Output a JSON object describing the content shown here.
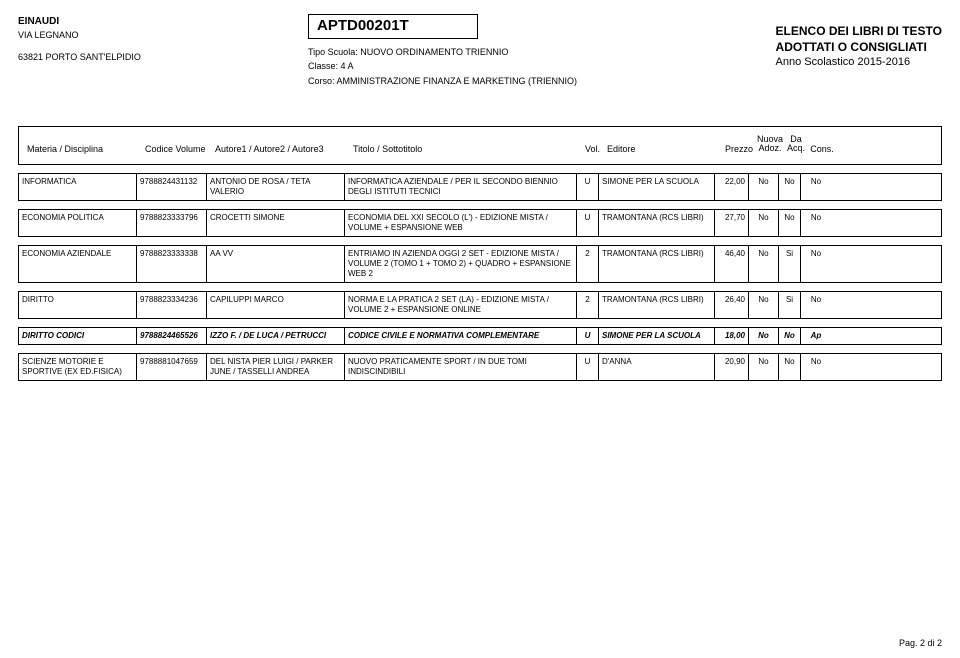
{
  "header": {
    "school_name": "EINAUDI",
    "street": "VIA LEGNANO",
    "zip_city": "63821  PORTO SANT'ELPIDIO",
    "course_code": "APTD00201T",
    "tipo_label": "Tipo Scuola:",
    "tipo_value": "NUOVO ORDINAMENTO TRIENNIO",
    "classe_label": "Classe:",
    "classe_value": "4 A",
    "corso_label": "Corso:",
    "corso_value": "AMMINISTRAZIONE FINANZA E MARKETING (TRIENNIO)",
    "right_line1": "ELENCO DEI LIBRI DI TESTO",
    "right_line2": "ADOTTATI O CONSIGLIATI",
    "right_line3": "Anno Scolastico 2015-2016"
  },
  "cols": {
    "materia": "Materia / Disciplina",
    "codice": "Codice Volume",
    "autore": "Autore1 / Autore2 / Autore3",
    "titolo": "Titolo / Sottotitolo",
    "vol": "Vol.",
    "editore": "Editore",
    "prezzo": "Prezzo",
    "nuova1": "Nuova",
    "nuova2": "Adoz.",
    "da1": "Da",
    "da2": "Acq.",
    "cons": "Cons."
  },
  "rows": [
    {
      "materia": "INFORMATICA",
      "codice": "9788824431132",
      "autore": "ANTONIO DE ROSA / TETA VALERIO",
      "titolo": "INFORMATICA AZIENDALE / PER IL SECONDO BIENNIO DEGLI ISTITUTI TECNICI",
      "vol": "U",
      "editore": "SIMONE PER LA SCUOLA",
      "prezzo": "22,00",
      "nuova": "No",
      "da": "No",
      "cons": "No",
      "bold": false
    },
    {
      "materia": "ECONOMIA POLITICA",
      "codice": "9788823333796",
      "autore": "CROCETTI SIMONE",
      "titolo": "ECONOMIA DEL XXI SECOLO (L') - EDIZIONE MISTA / VOLUME + ESPANSIONE WEB",
      "vol": "U",
      "editore": "TRAMONTANA (RCS LIBRI)",
      "prezzo": "27,70",
      "nuova": "No",
      "da": "No",
      "cons": "No",
      "bold": false
    },
    {
      "materia": "ECONOMIA AZIENDALE",
      "codice": "9788823333338",
      "autore": "AA VV",
      "titolo": "ENTRIAMO IN AZIENDA OGGI 2 SET - EDIZIONE MISTA / VOLUME 2 (TOMO 1 + TOMO 2) + QUADRO + ESPANSIONE WEB 2",
      "vol": "2",
      "editore": "TRAMONTANA (RCS LIBRI)",
      "prezzo": "46,40",
      "nuova": "No",
      "da": "Si",
      "cons": "No",
      "bold": false
    },
    {
      "materia": "DIRITTO",
      "codice": "9788823334236",
      "autore": "CAPILUPPI MARCO",
      "titolo": "NORMA E LA PRATICA 2 SET (LA) - EDIZIONE MISTA / VOLUME 2 + ESPANSIONE ONLINE",
      "vol": "2",
      "editore": "TRAMONTANA (RCS LIBRI)",
      "prezzo": "26,40",
      "nuova": "No",
      "da": "Si",
      "cons": "No",
      "bold": false
    },
    {
      "materia": "DIRITTO CODICI",
      "codice": "9788824465526",
      "autore": "IZZO F. / DE LUCA / PETRUCCI",
      "titolo": "CODICE CIVILE E NORMATIVA COMPLEMENTARE",
      "vol": "U",
      "editore": "SIMONE PER LA SCUOLA",
      "prezzo": "18,00",
      "nuova": "No",
      "da": "No",
      "cons": "Ap",
      "bold": true
    },
    {
      "materia": "SCIENZE MOTORIE E SPORTIVE (EX ED.FISICA)",
      "codice": "9788881047659",
      "autore": "DEL NISTA PIER LUIGI / PARKER JUNE / TASSELLI ANDREA",
      "titolo": "NUOVO PRATICAMENTE SPORT / IN DUE TOMI INDISCINDIBILI",
      "vol": "U",
      "editore": "D'ANNA",
      "prezzo": "20,90",
      "nuova": "No",
      "da": "No",
      "cons": "No",
      "bold": false
    }
  ],
  "footer": {
    "page": "Pag. 2 di 2"
  }
}
